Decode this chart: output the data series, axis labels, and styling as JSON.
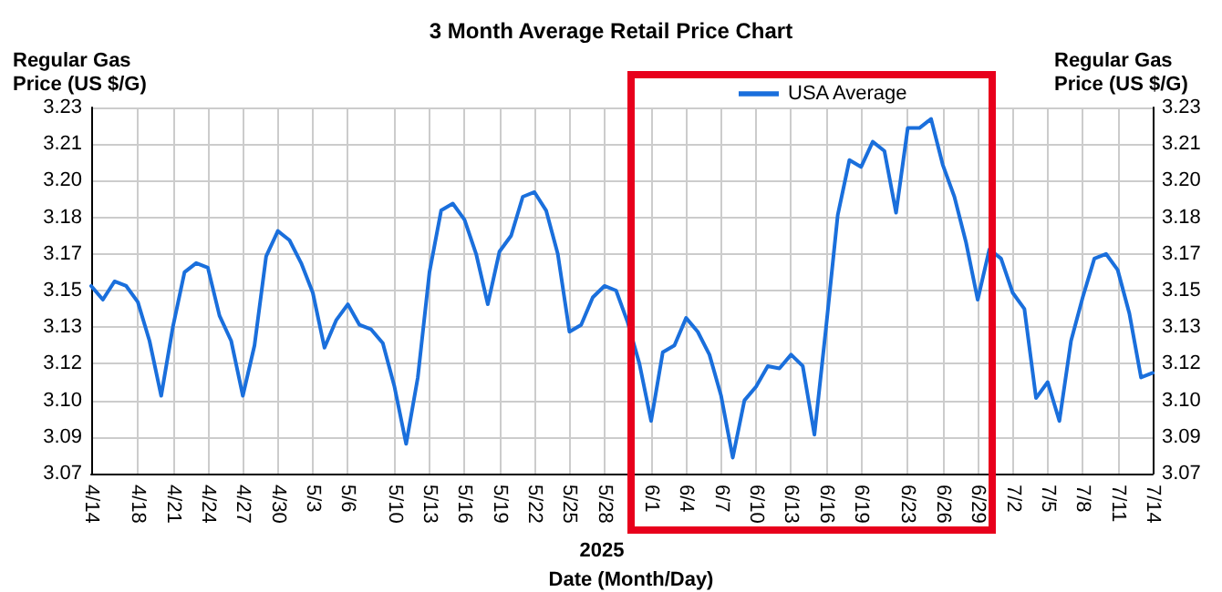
{
  "chart_data": {
    "type": "line",
    "title": "3 Month Average Retail Price Chart",
    "xlabel": "Date (Month/Day)",
    "ylabel": "Regular Gas Price (US $/G)",
    "y2label": "Regular Gas Price (US $/G)",
    "annotations": [
      "2025"
    ],
    "x": [
      "2025-04-14",
      "2025-04-15",
      "2025-04-16",
      "2025-04-17",
      "2025-04-18",
      "2025-04-19",
      "2025-04-20",
      "2025-04-21",
      "2025-04-22",
      "2025-04-23",
      "2025-04-24",
      "2025-04-25",
      "2025-04-26",
      "2025-04-27",
      "2025-04-28",
      "2025-04-29",
      "2025-04-30",
      "2025-05-01",
      "2025-05-02",
      "2025-05-03",
      "2025-05-04",
      "2025-05-05",
      "2025-05-06",
      "2025-05-07",
      "2025-05-08",
      "2025-05-09",
      "2025-05-10",
      "2025-05-11",
      "2025-05-12",
      "2025-05-13",
      "2025-05-14",
      "2025-05-15",
      "2025-05-16",
      "2025-05-17",
      "2025-05-18",
      "2025-05-19",
      "2025-05-20",
      "2025-05-21",
      "2025-05-22",
      "2025-05-23",
      "2025-05-24",
      "2025-05-25",
      "2025-05-26",
      "2025-05-27",
      "2025-05-28",
      "2025-05-29",
      "2025-05-30",
      "2025-05-31",
      "2025-06-01",
      "2025-06-02",
      "2025-06-03",
      "2025-06-04",
      "2025-06-05",
      "2025-06-06",
      "2025-06-07",
      "2025-06-08",
      "2025-06-09",
      "2025-06-10",
      "2025-06-11",
      "2025-06-12",
      "2025-06-13",
      "2025-06-14",
      "2025-06-15",
      "2025-06-16",
      "2025-06-17",
      "2025-06-18",
      "2025-06-19",
      "2025-06-20",
      "2025-06-21",
      "2025-06-22",
      "2025-06-23",
      "2025-06-24",
      "2025-06-25",
      "2025-06-26",
      "2025-06-27",
      "2025-06-28",
      "2025-06-29",
      "2025-06-30",
      "2025-07-01",
      "2025-07-02",
      "2025-07-03",
      "2025-07-04",
      "2025-07-05",
      "2025-07-06",
      "2025-07-07",
      "2025-07-08",
      "2025-07-09",
      "2025-07-10",
      "2025-07-11",
      "2025-07-12",
      "2025-07-13",
      "2025-07-14"
    ],
    "series": [
      {
        "name": "USA Average",
        "color": "#1a6fdc",
        "values": [
          3.152,
          3.146,
          3.154,
          3.152,
          3.145,
          3.128,
          3.104,
          3.134,
          3.158,
          3.162,
          3.16,
          3.139,
          3.128,
          3.104,
          3.126,
          3.165,
          3.176,
          3.172,
          3.162,
          3.149,
          3.125,
          3.137,
          3.144,
          3.135,
          3.133,
          3.127,
          3.108,
          3.083,
          3.112,
          3.158,
          3.185,
          3.188,
          3.181,
          3.166,
          3.144,
          3.167,
          3.174,
          3.191,
          3.193,
          3.185,
          3.166,
          3.132,
          3.135,
          3.147,
          3.152,
          3.15,
          3.136,
          3.118,
          3.093,
          3.123,
          3.126,
          3.138,
          3.132,
          3.122,
          3.104,
          3.077,
          3.102,
          3.108,
          3.117,
          3.116,
          3.122,
          3.117,
          3.087,
          3.134,
          3.183,
          3.207,
          3.204,
          3.215,
          3.211,
          3.184,
          3.221,
          3.221,
          3.225,
          3.205,
          3.191,
          3.171,
          3.146,
          3.168,
          3.164,
          3.149,
          3.142,
          3.103,
          3.11,
          3.093,
          3.128,
          3.147,
          3.164,
          3.166,
          3.159,
          3.14,
          3.112,
          3.114
        ]
      }
    ],
    "xlim": [
      "2025-04-14",
      "2025-07-14"
    ],
    "xticks": [
      {
        "value": "2025-04-14",
        "label": "4/14"
      },
      {
        "value": "2025-04-18",
        "label": "4/18"
      },
      {
        "value": "2025-04-21",
        "label": "4/21"
      },
      {
        "value": "2025-04-24",
        "label": "4/24"
      },
      {
        "value": "2025-04-27",
        "label": "4/27"
      },
      {
        "value": "2025-04-30",
        "label": "4/30"
      },
      {
        "value": "2025-05-03",
        "label": "5/3"
      },
      {
        "value": "2025-05-06",
        "label": "5/6"
      },
      {
        "value": "2025-05-10",
        "label": "5/10"
      },
      {
        "value": "2025-05-13",
        "label": "5/13"
      },
      {
        "value": "2025-05-16",
        "label": "5/16"
      },
      {
        "value": "2025-05-19",
        "label": "5/19"
      },
      {
        "value": "2025-05-22",
        "label": "5/22"
      },
      {
        "value": "2025-05-25",
        "label": "5/25"
      },
      {
        "value": "2025-05-28",
        "label": "5/28"
      },
      {
        "value": "2025-06-01",
        "label": "6/1"
      },
      {
        "value": "2025-06-04",
        "label": "6/4"
      },
      {
        "value": "2025-06-07",
        "label": "6/7"
      },
      {
        "value": "2025-06-10",
        "label": "6/10"
      },
      {
        "value": "2025-06-13",
        "label": "6/13"
      },
      {
        "value": "2025-06-16",
        "label": "6/16"
      },
      {
        "value": "2025-06-19",
        "label": "6/19"
      },
      {
        "value": "2025-06-23",
        "label": "6/23"
      },
      {
        "value": "2025-06-26",
        "label": "6/26"
      },
      {
        "value": "2025-06-29",
        "label": "6/29"
      },
      {
        "value": "2025-07-02",
        "label": "7/2"
      },
      {
        "value": "2025-07-05",
        "label": "7/5"
      },
      {
        "value": "2025-07-08",
        "label": "7/8"
      },
      {
        "value": "2025-07-11",
        "label": "7/11"
      },
      {
        "value": "2025-07-14",
        "label": "7/14"
      }
    ],
    "ylim": [
      3.07,
      3.23
    ],
    "yticks": [
      3.07,
      {
        "value": 3.086,
        "label": "3.09"
      },
      {
        "value": 3.102,
        "label": "3.10"
      },
      {
        "value": 3.118,
        "label": "3.12"
      },
      {
        "value": 3.134,
        "label": "3.13"
      },
      3.15,
      {
        "value": 3.166,
        "label": "3.17"
      },
      {
        "value": 3.182,
        "label": "3.18"
      },
      {
        "value": 3.198,
        "label": "3.20"
      },
      {
        "value": 3.214,
        "label": "3.21"
      },
      3.23
    ],
    "y2lim": [
      3.07,
      3.23
    ],
    "y2ticks": [
      3.07,
      {
        "value": 3.086,
        "label": "3.09"
      },
      {
        "value": 3.102,
        "label": "3.10"
      },
      {
        "value": 3.118,
        "label": "3.12"
      },
      {
        "value": 3.134,
        "label": "3.13"
      },
      3.15,
      {
        "value": 3.166,
        "label": "3.17"
      },
      {
        "value": 3.182,
        "label": "3.18"
      },
      {
        "value": 3.198,
        "label": "3.20"
      },
      {
        "value": 3.214,
        "label": "3.21"
      },
      3.23
    ],
    "grid": true,
    "legend": "top",
    "marker": "none",
    "line_style": "solid"
  }
}
